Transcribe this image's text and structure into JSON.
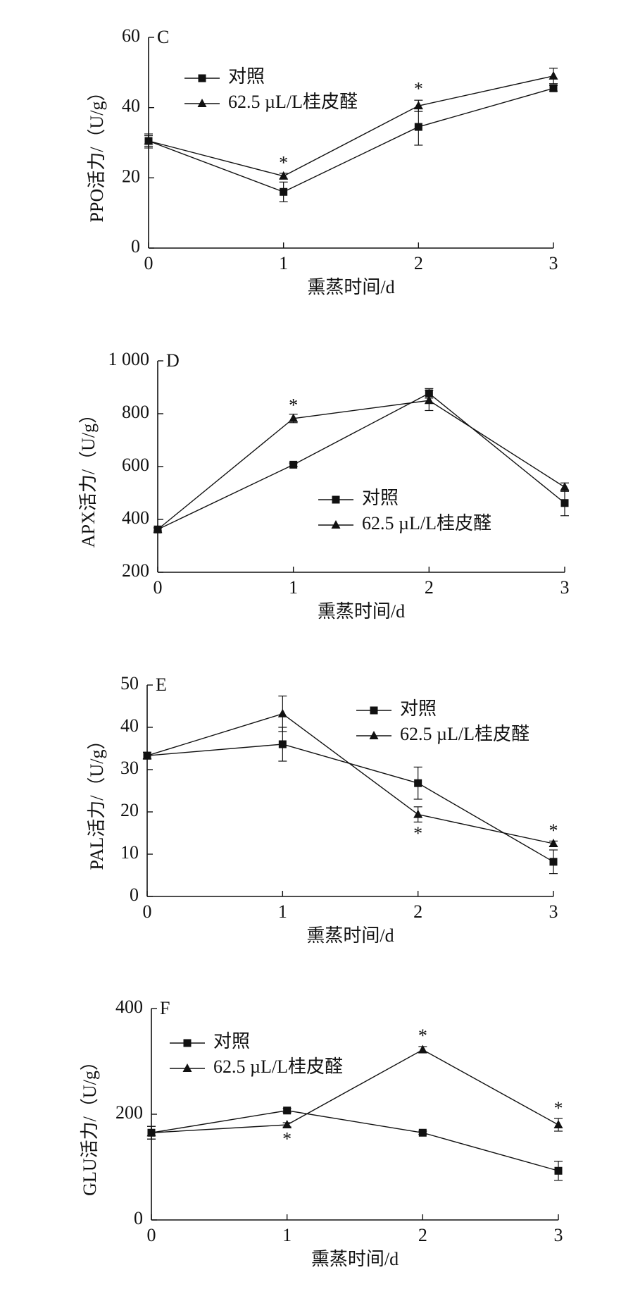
{
  "chart_data": [
    {
      "type": "line",
      "panel": "C",
      "xlabel": "熏蒸时间/d",
      "ylabel": "PPO活力/（U/g）",
      "x": [
        0,
        1,
        2,
        3
      ],
      "xticks": [
        "0",
        "1",
        "2",
        "3"
      ],
      "ylim": [
        0,
        60
      ],
      "yticks": [
        "0",
        "20",
        "40",
        "60"
      ],
      "legend_position": "top-left",
      "series": [
        {
          "name": "对照",
          "marker": "square",
          "values": [
            30.5,
            16,
            34.5,
            45.5
          ],
          "errors": [
            2,
            2.8,
            5.2,
            0.8
          ]
        },
        {
          "name": "62.5 µL/L桂皮醛",
          "marker": "triangle",
          "values": [
            30.5,
            20.5,
            40.5,
            49
          ],
          "errors": [
            1.5,
            0.8,
            1.6,
            2.2
          ]
        }
      ],
      "annotations": [
        {
          "x": 1,
          "y": 23.8,
          "text": "*"
        },
        {
          "x": 2,
          "y": 44.8,
          "text": "*"
        }
      ]
    },
    {
      "type": "line",
      "panel": "D",
      "xlabel": "熏蒸时间/d",
      "ylabel": "APX活力/（U/g）",
      "x": [
        0,
        1,
        2,
        3
      ],
      "xticks": [
        "0",
        "1",
        "2",
        "3"
      ],
      "ylim": [
        200,
        1000
      ],
      "yticks": [
        "200",
        "400",
        "600",
        "800",
        "1 000"
      ],
      "legend_position": "center-right",
      "series": [
        {
          "name": "对照",
          "marker": "square",
          "values": [
            362,
            607,
            877,
            462
          ],
          "errors": [
            6,
            6,
            18,
            48
          ]
        },
        {
          "name": "62.5 µL/L桂皮醛",
          "marker": "triangle",
          "values": [
            362,
            782,
            850,
            522
          ],
          "errors": [
            6,
            16,
            38,
            16
          ]
        }
      ],
      "annotations": [
        {
          "x": 1,
          "y": 825,
          "text": "*"
        }
      ]
    },
    {
      "type": "line",
      "panel": "E",
      "xlabel": "熏蒸时间/d",
      "ylabel": "PAL活力/（U/g）",
      "x": [
        0,
        1,
        2,
        3
      ],
      "xticks": [
        "0",
        "1",
        "2",
        "3"
      ],
      "ylim": [
        0,
        50
      ],
      "yticks": [
        "0",
        "10",
        "20",
        "30",
        "40",
        "50"
      ],
      "legend_position": "top-right",
      "series": [
        {
          "name": "对照",
          "marker": "square",
          "values": [
            33.3,
            36,
            26.8,
            8.2
          ],
          "errors": [
            0.8,
            4,
            3.8,
            2.8
          ]
        },
        {
          "name": "62.5 µL/L桂皮醛",
          "marker": "triangle",
          "values": [
            33.3,
            43.2,
            19.4,
            12.5
          ],
          "errors": [
            0.8,
            4.2,
            1.8,
            0.6
          ]
        }
      ],
      "annotations": [
        {
          "x": 2,
          "y": 14.5,
          "text": "*"
        },
        {
          "x": 3,
          "y": 15.2,
          "text": "*"
        }
      ]
    },
    {
      "type": "line",
      "panel": "F",
      "xlabel": "熏蒸时间/d",
      "ylabel": "GLU活力/（U/g）",
      "x": [
        0,
        1,
        2,
        3
      ],
      "xticks": [
        "0",
        "1",
        "2",
        "3"
      ],
      "ylim": [
        0,
        400
      ],
      "yticks": [
        "0",
        "200",
        "400"
      ],
      "legend_position": "top-left",
      "series": [
        {
          "name": "对照",
          "marker": "square",
          "values": [
            165,
            207,
            165,
            93
          ],
          "errors": [
            12,
            4,
            3,
            18
          ]
        },
        {
          "name": "62.5 µL/L桂皮醛",
          "marker": "triangle",
          "values": [
            165,
            180,
            322,
            180
          ],
          "errors": [
            12,
            4,
            6,
            12
          ]
        }
      ],
      "annotations": [
        {
          "x": 1,
          "y": 150,
          "text": "*"
        },
        {
          "x": 2,
          "y": 345,
          "text": "*"
        },
        {
          "x": 3,
          "y": 208,
          "text": "*"
        }
      ]
    }
  ]
}
